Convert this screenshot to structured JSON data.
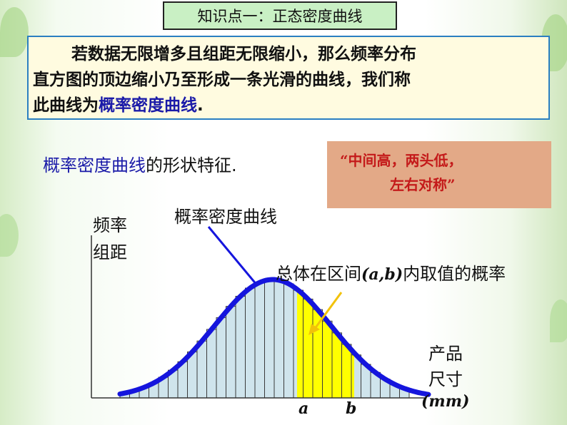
{
  "title": "知识点一：正态密度曲线",
  "definition": {
    "indent": "若数据无限增多且组距无限缩小，那么频率分布",
    "line2": "直方图的顶边缩小乃至形成一条光滑的曲线，我们称",
    "line3_prefix": "此曲线为",
    "line3_term": "概率密度曲线",
    "line3_suffix": "."
  },
  "shape": {
    "term": "概率密度曲线",
    "suffix": "的形状特征."
  },
  "quote": {
    "line1": "“中间高，两头低，",
    "line2": "左右对称”"
  },
  "chart": {
    "curve_label": "概率密度曲线",
    "y_label_line1": "频率",
    "y_label_line2": "组距",
    "prob_label_prefix": "总体在区间",
    "prob_label_interval": "(a,b)",
    "prob_label_suffix": "内取值的概率",
    "x_label_line1": "产品",
    "x_label_line2": "尺寸",
    "x_unit": "(mm)",
    "tick_a": "a",
    "tick_b": "b",
    "colors": {
      "curve": "#1515dd",
      "bars": "#cfe4ec",
      "shade": "#ffff00",
      "arrow": "#1515dd"
    }
  }
}
